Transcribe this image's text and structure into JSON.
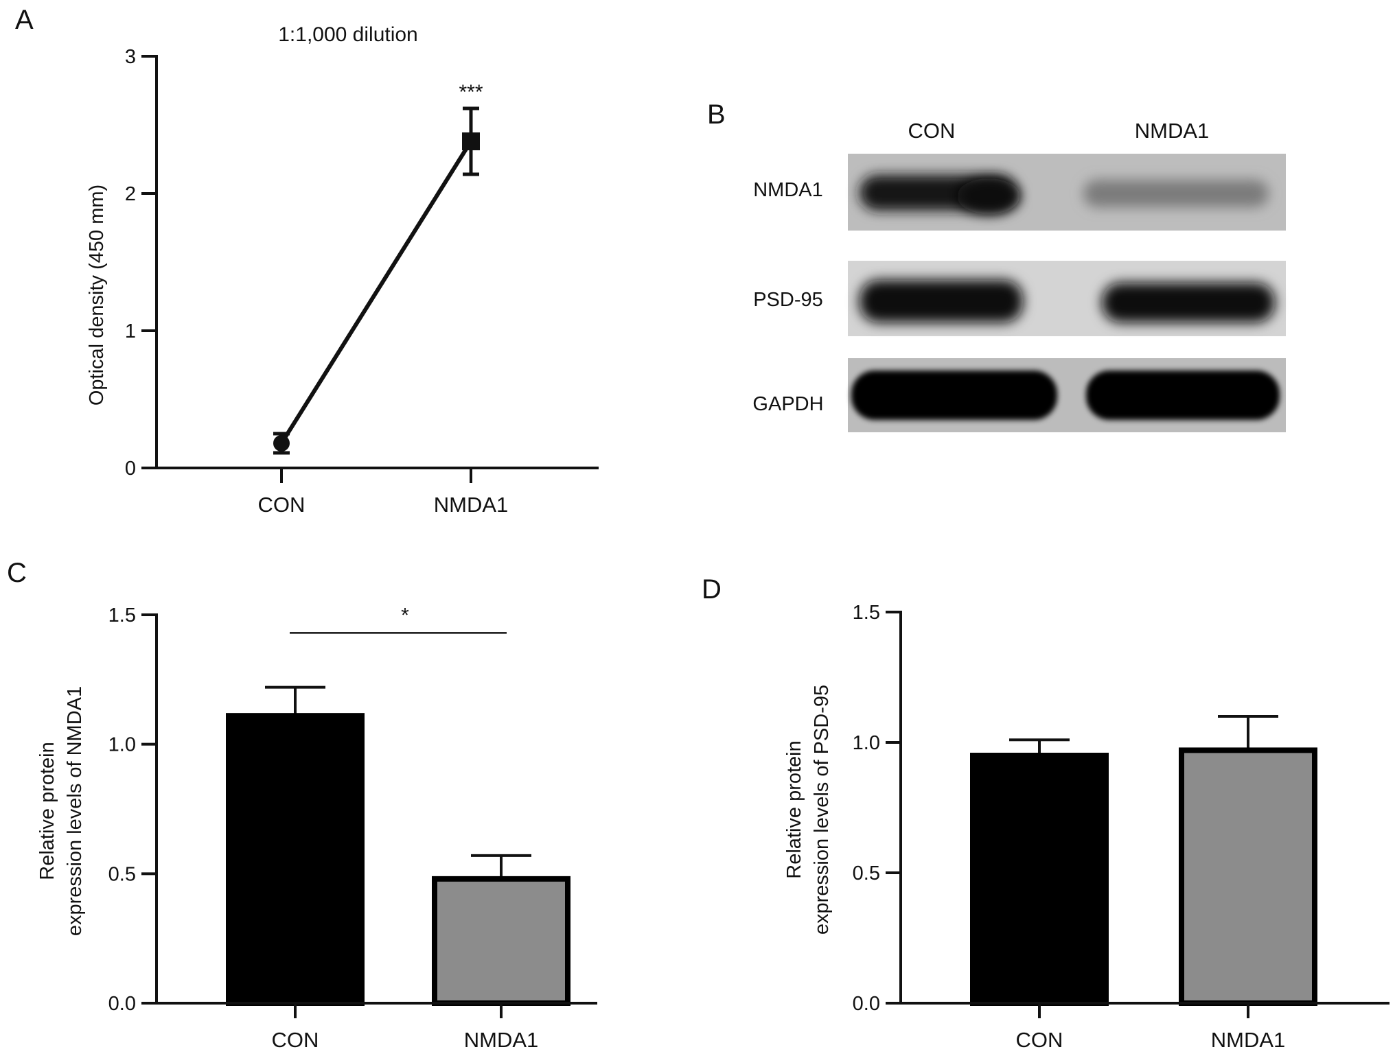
{
  "panels": {
    "A": {
      "letter": "A"
    },
    "B": {
      "letter": "B"
    },
    "C": {
      "letter": "C"
    },
    "D": {
      "letter": "D"
    }
  },
  "chart_data": [
    {
      "type": "line",
      "panel": "A",
      "title": "1:1,000 dilution",
      "ylabel": "Optical density (450 mm)",
      "xlabel": "",
      "categories": [
        "CON",
        "NMDA1"
      ],
      "ylim": [
        0,
        3
      ],
      "yticks": [
        "0",
        "1",
        "2",
        "3"
      ],
      "series": [
        {
          "values": [
            0.18,
            2.38
          ],
          "error": [
            0.07,
            0.24
          ],
          "markers": [
            "circle",
            "square"
          ]
        }
      ],
      "annotations": [
        {
          "category": "NMDA1",
          "text": "***"
        }
      ],
      "grid": false,
      "color": "#111111"
    },
    {
      "type": "bar",
      "panel": "C",
      "title": "",
      "ylabel": "Relative protein expression levels of NMDA1",
      "ylabel_lines": [
        "Relative protein",
        "expression levels of NMDA1"
      ],
      "xlabel": "",
      "categories": [
        "CON",
        "NMDA1"
      ],
      "ylim": [
        0,
        1.5
      ],
      "yticks": [
        "0.0",
        "0.5",
        "1.0",
        "1.5"
      ],
      "values": [
        1.11,
        0.48
      ],
      "error": [
        0.11,
        0.09
      ],
      "bar_colors": [
        "#000000",
        "#8c8c8c"
      ],
      "significance": {
        "text": "*",
        "from": "CON",
        "to": "NMDA1",
        "y": 1.43
      },
      "grid": false
    },
    {
      "type": "bar",
      "panel": "D",
      "title": "",
      "ylabel": "Relative protein expression levels of PSD-95",
      "ylabel_lines": [
        "Relative protein",
        "expression levels of PSD-95"
      ],
      "xlabel": "",
      "categories": [
        "CON",
        "NMDA1"
      ],
      "ylim": [
        0,
        1.5
      ],
      "yticks": [
        "0.0",
        "0.5",
        "1.0",
        "1.5"
      ],
      "values": [
        0.95,
        0.97
      ],
      "error": [
        0.06,
        0.13
      ],
      "bar_colors": [
        "#000000",
        "#8c8c8c"
      ],
      "grid": false
    }
  ],
  "blot": {
    "lanes": [
      "CON",
      "NMDA1"
    ],
    "rows": [
      {
        "label": "NMDA1",
        "intensity": [
          0.85,
          0.35
        ]
      },
      {
        "label": "PSD-95",
        "intensity": [
          0.95,
          0.9
        ]
      },
      {
        "label": "GAPDH",
        "intensity": [
          1.0,
          1.0
        ]
      }
    ]
  }
}
